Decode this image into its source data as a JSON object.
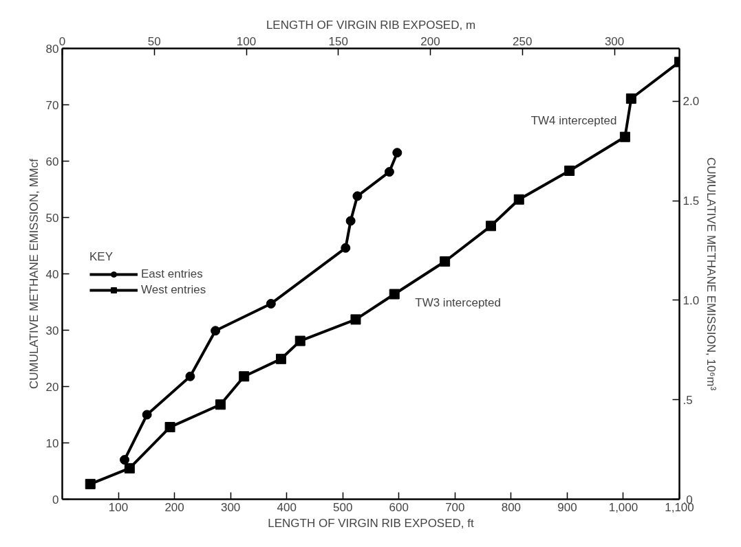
{
  "chart_data": {
    "type": "line",
    "xlabel": "LENGTH OF VIRGIN RIB EXPOSED, ft",
    "x2label": "LENGTH OF VIRGIN RIB EXPOSED, m",
    "ylabel": "CUMULATIVE METHANE EMISSION, MMcf",
    "y2label": "CUMULATIVE METHANE EMISSION, 10⁶m³",
    "legend_title": "KEY",
    "legend": "left",
    "grid": false,
    "xlim": [
      0,
      1100
    ],
    "xticks": [
      100,
      200,
      300,
      400,
      500,
      600,
      700,
      800,
      900,
      {
        "value": 1000,
        "label": "1,000"
      },
      {
        "value": 1100,
        "label": "1,100"
      }
    ],
    "x2lim": [
      0,
      335.3
    ],
    "x2ticks": [
      0,
      50,
      100,
      150,
      200,
      250,
      300
    ],
    "ylim": [
      0,
      80
    ],
    "yticks": [
      0,
      10,
      20,
      30,
      40,
      50,
      60,
      70,
      80
    ],
    "y2lim": [
      0,
      2.265
    ],
    "y2ticks": [
      {
        "value": 0,
        "label": ".0"
      },
      {
        "value": 0.5,
        "label": ".5"
      },
      {
        "value": 1.0,
        "label": "1.0"
      },
      {
        "value": 1.5,
        "label": "1.5"
      },
      {
        "value": 2.0,
        "label": "2.0"
      }
    ],
    "series": [
      {
        "name": "East entries",
        "color": "#000000",
        "marker": "circle",
        "x": [
          111,
          151,
          228,
          273,
          372,
          505,
          514,
          526,
          583,
          597
        ],
        "values": [
          7.0,
          15.0,
          21.8,
          29.9,
          34.7,
          44.6,
          49.4,
          53.8,
          58.1,
          61.5
        ]
      },
      {
        "name": "West entries",
        "color": "#000000",
        "marker": "square",
        "x": [
          50,
          120,
          192,
          282,
          324,
          390,
          424,
          523,
          592,
          682,
          764,
          814,
          904,
          1003,
          1014,
          1100
        ],
        "values": [
          2.7,
          5.5,
          12.8,
          16.8,
          21.8,
          24.9,
          28.1,
          31.9,
          36.4,
          42.2,
          48.5,
          53.2,
          58.3,
          64.3,
          71.1,
          77.6
        ]
      }
    ],
    "annotations": [
      {
        "text": "TW3 intercepted",
        "x": 592,
        "y": 36.4
      },
      {
        "text": "TW4 intercepted",
        "x": 1003,
        "y": 64.3
      }
    ]
  }
}
